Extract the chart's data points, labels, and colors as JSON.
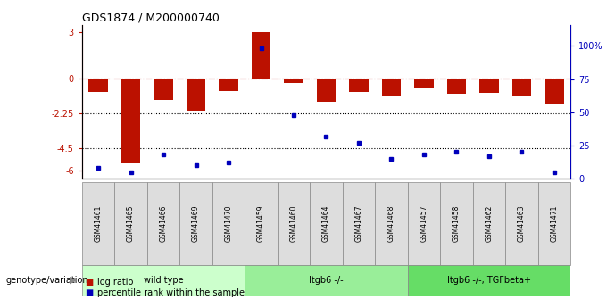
{
  "title": "GDS1874 / M200000740",
  "samples": [
    "GSM41461",
    "GSM41465",
    "GSM41466",
    "GSM41469",
    "GSM41470",
    "GSM41459",
    "GSM41460",
    "GSM41464",
    "GSM41467",
    "GSM41468",
    "GSM41457",
    "GSM41458",
    "GSM41462",
    "GSM41463",
    "GSM41471"
  ],
  "log_ratio": [
    -0.85,
    -5.5,
    -1.4,
    -2.1,
    -0.8,
    3.0,
    -0.3,
    -1.5,
    -0.85,
    -1.1,
    -0.65,
    -1.0,
    -0.9,
    -1.1,
    -1.7
  ],
  "percentile": [
    8,
    5,
    18,
    10,
    12,
    98,
    48,
    32,
    27,
    15,
    18,
    20,
    17,
    20,
    5
  ],
  "groups": [
    {
      "label": "wild type",
      "start": 0,
      "end": 5,
      "color": "#ccffcc"
    },
    {
      "label": "Itgb6 -/-",
      "start": 5,
      "end": 10,
      "color": "#99ee99"
    },
    {
      "label": "Itgb6 -/-, TGFbeta+",
      "start": 10,
      "end": 15,
      "color": "#66dd66"
    }
  ],
  "ylim_left": [
    -6.5,
    3.5
  ],
  "ylim_right": [
    0,
    116
  ],
  "hline_y": 0,
  "dotted_lines": [
    -2.25,
    -4.5
  ],
  "bar_color": "#bb1100",
  "dot_color": "#0000bb",
  "legend_items": [
    "log ratio",
    "percentile rank within the sample"
  ],
  "background_color": "#ffffff",
  "left_yticks": [
    3,
    0,
    -2.25,
    -4.5,
    -6
  ],
  "left_yticklabels": [
    "3",
    "0",
    "-2.25",
    "-4.5",
    "-6"
  ],
  "right_yticks": [
    0,
    25,
    50,
    75,
    100
  ],
  "right_yticklabels": [
    "0",
    "25",
    "50",
    "75",
    "100%"
  ]
}
